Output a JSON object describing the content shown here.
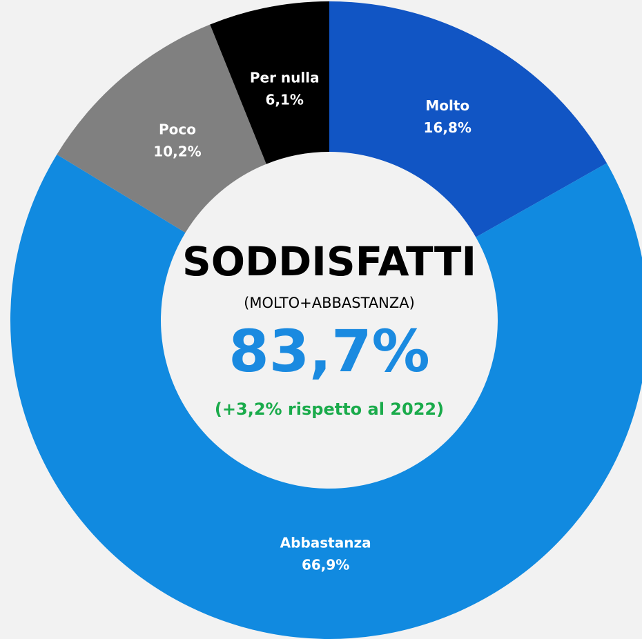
{
  "chart_data": {
    "type": "donut",
    "categories": [
      "Molto",
      "Abbastanza",
      "Poco",
      "Per nulla"
    ],
    "values": [
      16.8,
      66.9,
      10.2,
      6.1
    ],
    "value_labels": [
      "16,8%",
      "66,9%",
      "10,2%",
      "6,1%"
    ],
    "colors": [
      "#1155c4",
      "#118ae0",
      "#808080",
      "#000000"
    ],
    "annotations": [
      "SODDISFATTI",
      "(MOLTO+ABBASTANZA)",
      "83,7%",
      "(+3,2% rispetto al 2022)"
    ]
  }
}
